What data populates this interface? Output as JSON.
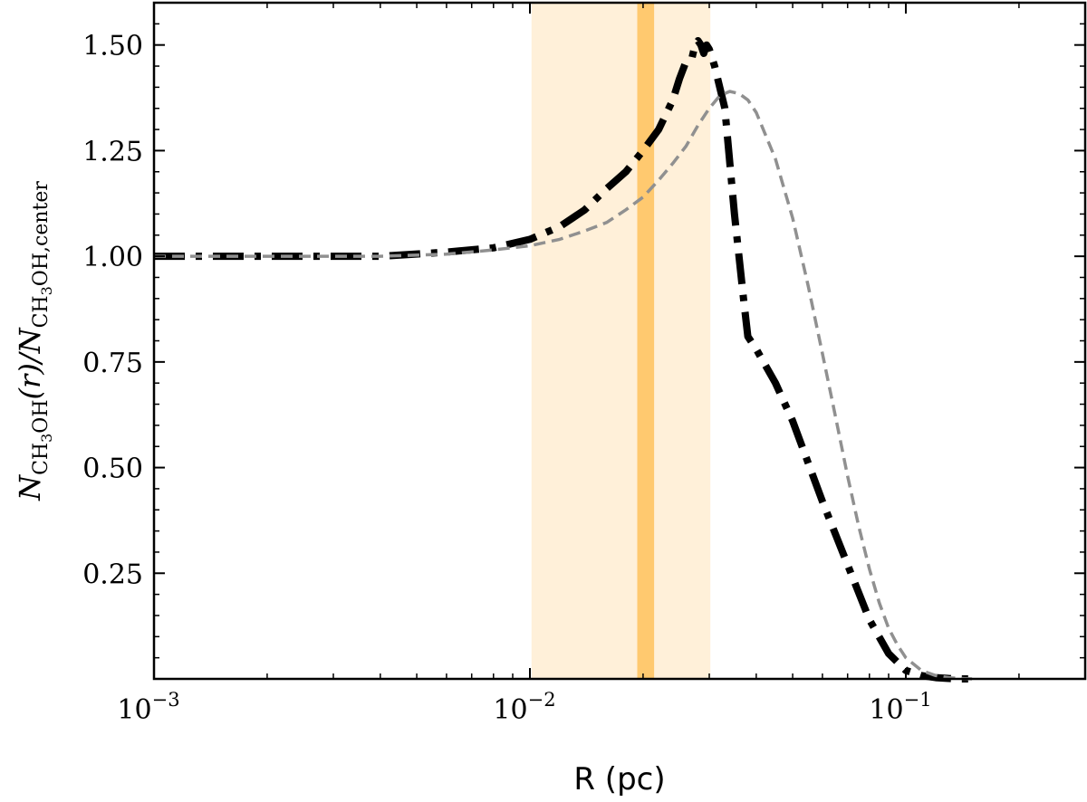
{
  "chart_data": {
    "type": "line",
    "title": "",
    "xlabel": "R (pc)",
    "ylabel": "N_{CH3OH}(r)/N_{CH3OH,center}",
    "ylabel_parts": {
      "main": "N",
      "sub1": "CH",
      "sub1_sub": "3",
      "sub1_tail": "OH",
      "mid": "(r)/N",
      "sub2": "CH",
      "sub2_sub": "3",
      "sub2_tail": "OH,center"
    },
    "x_scale": "log",
    "xlim": [
      0.001,
      0.3
    ],
    "ylim": [
      0.0,
      1.6
    ],
    "x_ticks": [
      {
        "value": 0.001,
        "base": "10",
        "exp": "−3"
      },
      {
        "value": 0.01,
        "base": "10",
        "exp": "−2"
      },
      {
        "value": 0.1,
        "base": "10",
        "exp": "−1"
      }
    ],
    "y_ticks": [
      {
        "value": 0.25,
        "label": "0.25"
      },
      {
        "value": 0.5,
        "label": "0.50"
      },
      {
        "value": 0.75,
        "label": "0.75"
      },
      {
        "value": 1.0,
        "label": "1.00"
      },
      {
        "value": 1.25,
        "label": "1.25"
      },
      {
        "value": 1.5,
        "label": "1.50"
      }
    ],
    "grid": false,
    "legend": "none",
    "shaded_regions": [
      {
        "x0": 0.0101,
        "x1": 0.0302,
        "color": "#fff0d9"
      },
      {
        "x0": 0.0193,
        "x1": 0.0214,
        "color": "#ffc96f"
      }
    ],
    "series": [
      {
        "style": "dashdot",
        "color": "#000000",
        "x": [
          0.001,
          0.002,
          0.004,
          0.006,
          0.008,
          0.01,
          0.012,
          0.014,
          0.016,
          0.018,
          0.02,
          0.022,
          0.024,
          0.025,
          0.026,
          0.027,
          0.0275,
          0.028,
          0.0285,
          0.029,
          0.0295,
          0.03,
          0.031,
          0.033,
          0.035,
          0.037,
          0.038,
          0.04,
          0.045,
          0.05,
          0.06,
          0.07,
          0.08,
          0.09,
          0.1,
          0.11,
          0.12,
          0.13,
          0.14,
          0.15
        ],
        "y": [
          1.0,
          1.0,
          1.0,
          1.01,
          1.02,
          1.04,
          1.07,
          1.11,
          1.16,
          1.2,
          1.25,
          1.3,
          1.37,
          1.42,
          1.46,
          1.47,
          1.5,
          1.51,
          1.5,
          1.48,
          1.5,
          1.49,
          1.45,
          1.35,
          1.1,
          0.9,
          0.81,
          0.78,
          0.7,
          0.61,
          0.42,
          0.27,
          0.14,
          0.06,
          0.02,
          0.008,
          0.003,
          0.001,
          0.0,
          0.0
        ]
      },
      {
        "style": "dashed",
        "color": "#909090",
        "x": [
          0.001,
          0.002,
          0.004,
          0.006,
          0.008,
          0.01,
          0.012,
          0.014,
          0.016,
          0.018,
          0.02,
          0.022,
          0.024,
          0.026,
          0.028,
          0.03,
          0.032,
          0.034,
          0.036,
          0.038,
          0.04,
          0.045,
          0.05,
          0.055,
          0.06,
          0.065,
          0.07,
          0.075,
          0.08,
          0.085,
          0.09,
          0.095,
          0.1,
          0.11,
          0.12,
          0.13,
          0.14,
          0.15
        ],
        "y": [
          1.0,
          1.0,
          1.0,
          1.005,
          1.015,
          1.025,
          1.04,
          1.06,
          1.08,
          1.11,
          1.14,
          1.18,
          1.22,
          1.26,
          1.31,
          1.35,
          1.38,
          1.39,
          1.385,
          1.37,
          1.34,
          1.23,
          1.09,
          0.93,
          0.77,
          0.62,
          0.48,
          0.36,
          0.26,
          0.18,
          0.12,
          0.08,
          0.05,
          0.02,
          0.008,
          0.003,
          0.001,
          0.0
        ]
      }
    ]
  }
}
